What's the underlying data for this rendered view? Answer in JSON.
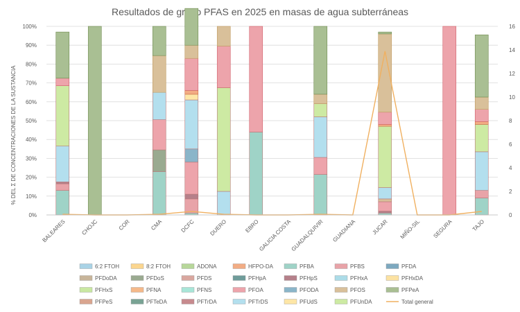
{
  "chart_data": {
    "type": "bar",
    "stacked": true,
    "title": "Resultados de grupo PFAS en 2025 en masas de agua subterráneas",
    "ylabel": "% DEL Σ DE CONCENTRACIONES DE LA SUSTANCIA",
    "y_ticks": [
      "0%",
      "10%",
      "20%",
      "30%",
      "40%",
      "50%",
      "60%",
      "70%",
      "80%",
      "90%",
      "100%"
    ],
    "y2_ticks": [
      "0",
      "2",
      "4",
      "6",
      "8",
      "10",
      "12",
      "14",
      "16"
    ],
    "ylim": [
      0,
      100
    ],
    "y2lim": [
      0,
      16
    ],
    "grid": true,
    "legend_position": "bottom",
    "categories": [
      "BALEARES",
      "CHOJC",
      "COR",
      "CMA",
      "DCFC",
      "DUERO",
      "EBRO",
      "GALICIA COSTA",
      "GUADALQUIVIR",
      "GUADIANA",
      "JUCAR",
      "MIÑO-SIL",
      "SEGURA",
      "TAJO"
    ],
    "series": [
      {
        "name": "6:2 FTOH",
        "color": "#a9d3e6",
        "values": [
          0,
          0,
          0,
          0,
          0,
          0,
          0,
          0,
          0,
          0,
          0,
          0,
          0,
          0
        ]
      },
      {
        "name": "8:2 FTOH",
        "color": "#fbd68f",
        "values": [
          0,
          0,
          0,
          0,
          0,
          0,
          0,
          0,
          0,
          0,
          0,
          0,
          0,
          0
        ]
      },
      {
        "name": "ADONA",
        "color": "#b7d79a",
        "values": [
          0,
          0,
          0,
          0,
          0,
          0,
          0,
          0,
          0,
          0,
          0,
          0,
          0,
          0
        ]
      },
      {
        "name": "HFPO-DA",
        "color": "#f2ac84",
        "values": [
          0,
          0,
          0,
          0,
          0,
          0,
          0,
          0,
          0,
          0,
          0,
          0,
          0,
          0
        ]
      },
      {
        "name": "PFBA",
        "color": "#9fd3c7",
        "values": [
          13,
          0,
          0,
          23,
          1,
          0,
          44,
          0,
          21.5,
          0,
          1,
          0,
          0,
          9
        ]
      },
      {
        "name": "PFBS",
        "color": "#e8a3a8",
        "values": [
          3.5,
          0,
          0,
          0,
          7.5,
          0,
          0,
          0,
          0,
          0,
          0,
          0,
          0,
          4
        ]
      },
      {
        "name": "PFDA",
        "color": "#7da8bf",
        "values": [
          0,
          0,
          0,
          0,
          0,
          0,
          0,
          0,
          0,
          0,
          0,
          0,
          0,
          0
        ]
      },
      {
        "name": "PFDoDA",
        "color": "#c8b59a",
        "values": [
          0,
          0,
          0,
          0,
          0,
          0,
          0,
          0,
          0,
          0,
          0,
          0,
          0,
          0
        ]
      },
      {
        "name": "PFDoS",
        "color": "#9aaa90",
        "values": [
          0,
          0,
          0,
          11.5,
          0,
          0,
          0,
          0,
          0,
          0,
          0,
          0,
          0,
          0
        ]
      },
      {
        "name": "PFDS",
        "color": "#d9a79f",
        "values": [
          0,
          0,
          0,
          0,
          0,
          0,
          0,
          0,
          0,
          0,
          0,
          0,
          0,
          0
        ]
      },
      {
        "name": "PFHpA",
        "color": "#6f9c9a",
        "values": [
          0,
          0,
          0,
          0,
          0,
          0,
          0,
          0,
          0,
          0,
          0,
          0,
          0,
          0
        ]
      },
      {
        "name": "PFHpS",
        "color": "#b5808a",
        "values": [
          1,
          0,
          0,
          0,
          2.5,
          0,
          0,
          0,
          0,
          0,
          1,
          0,
          0,
          0
        ]
      },
      {
        "name": "PFHxA",
        "color": "#acdce8",
        "values": [
          0,
          0,
          0,
          0,
          0,
          0,
          0,
          0,
          0,
          0,
          0,
          0,
          0,
          0
        ]
      },
      {
        "name": "PFHxDA",
        "color": "#fce2a2",
        "values": [
          0,
          0,
          0,
          0,
          0,
          0,
          0,
          0,
          0,
          0,
          0,
          0,
          0,
          0
        ]
      },
      {
        "name": "PFHxS",
        "color": "#c9e8a2",
        "values": [
          0,
          0,
          0,
          0,
          0,
          0,
          0,
          0,
          0,
          0,
          0,
          0,
          0,
          0
        ]
      },
      {
        "name": "PFNA",
        "color": "#f5b98a",
        "values": [
          0,
          0,
          0,
          0,
          0,
          0,
          0,
          0,
          0,
          0,
          0,
          0,
          0,
          0
        ]
      },
      {
        "name": "PFNS",
        "color": "#a8e6d8",
        "values": [
          0,
          0,
          0,
          0,
          0,
          0,
          0,
          0,
          0,
          0,
          0,
          0,
          0,
          0
        ]
      },
      {
        "name": "PFOA",
        "color": "#eda4ab",
        "values": [
          0,
          0,
          0,
          16,
          17,
          0,
          0,
          0,
          9,
          0,
          5,
          0,
          0,
          0
        ]
      },
      {
        "name": "PFODA",
        "color": "#8ab5c9",
        "values": [
          0,
          0,
          0,
          0,
          7,
          0,
          0,
          0,
          0,
          0,
          0,
          0,
          0,
          0
        ]
      },
      {
        "name": "PFOS",
        "color": "#d9c09a",
        "values": [
          0,
          0,
          0,
          0,
          0,
          0,
          0,
          0,
          0,
          0,
          1.5,
          0,
          0,
          0
        ]
      },
      {
        "name": "PFPeA",
        "color": "#a9bf93",
        "values": [
          0,
          0,
          0,
          0,
          0,
          0,
          0,
          0,
          0,
          0,
          0,
          0,
          0,
          0
        ]
      },
      {
        "name": "PFPeS",
        "color": "#d9a58f",
        "values": [
          0,
          0,
          0,
          0,
          0,
          0,
          0,
          0,
          0,
          0,
          0,
          0,
          0,
          0
        ]
      },
      {
        "name": "PFTeDA",
        "color": "#79a394",
        "values": [
          0,
          0,
          0,
          0,
          0,
          0,
          0,
          0,
          0,
          0,
          0,
          0,
          0,
          0
        ]
      },
      {
        "name": "PFTrDA",
        "color": "#c78a8e",
        "values": [
          0,
          0,
          0,
          0,
          0,
          0,
          0,
          0,
          0,
          0,
          0,
          0,
          0,
          0
        ]
      },
      {
        "name": "PFTrDS",
        "color": "#b3dfee",
        "values": [
          19,
          0,
          0,
          14.5,
          26,
          12.5,
          0,
          0,
          21.5,
          0,
          6,
          0,
          0,
          20.5
        ]
      },
      {
        "name": "PFUdS",
        "color": "#fde6a6",
        "values": [
          0,
          0,
          0,
          0,
          3,
          0,
          0,
          0,
          0,
          0,
          0,
          0,
          0,
          0
        ]
      },
      {
        "name": "PFUnDA",
        "color": "#cdeaa3",
        "values": [
          32,
          0,
          0,
          0,
          0,
          55,
          0,
          0,
          7,
          0,
          32.5,
          0,
          0,
          14.5
        ]
      }
    ],
    "top_segments": [
      {
        "pink": 4,
        "tan": 0,
        "olive": 24.5,
        "orange": 0
      },
      {
        "pink": 0,
        "tan": 0,
        "olive": 100,
        "orange": 0
      },
      {
        "pink": 0,
        "tan": 0,
        "olive": 0,
        "orange": 0
      },
      {
        "pink": 0,
        "tan": 19.5,
        "olive": 15.5,
        "orange": 0
      },
      {
        "pink": 17,
        "tan": 7,
        "olive": 19.5,
        "orange": 2
      },
      {
        "pink": 22,
        "tan": 10.5,
        "olive": 0,
        "orange": 0
      },
      {
        "pink": 56,
        "tan": 0,
        "olive": 0,
        "orange": 0
      },
      {
        "pink": 0,
        "tan": 0,
        "olive": 0,
        "orange": 0
      },
      {
        "pink": 0,
        "tan": 5,
        "olive": 36,
        "orange": 0
      },
      {
        "pink": 0,
        "tan": 0,
        "olive": 0,
        "orange": 0
      },
      {
        "pink": 6.5,
        "tan": 41.5,
        "olive": 1,
        "orange": 1
      },
      {
        "pink": 0,
        "tan": 0,
        "olive": 0,
        "orange": 0
      },
      {
        "pink": 100,
        "tan": 0,
        "olive": 0,
        "orange": 0
      },
      {
        "pink": 6.5,
        "tan": 6.5,
        "olive": 33,
        "orange": 1.5
      }
    ],
    "line": {
      "name": "Total general",
      "color": "#f0b060",
      "axis": "secondary",
      "values": [
        0.05,
        0,
        0,
        0.05,
        0.3,
        0.05,
        0,
        0,
        0.05,
        0,
        13.9,
        0,
        0,
        0.3
      ]
    },
    "legend": [
      "6:2 FTOH",
      "8:2 FTOH",
      "ADONA",
      "HFPO-DA",
      "PFBA",
      "PFBS",
      "PFDA",
      "PFDoDA",
      "PFDoS",
      "PFDS",
      "PFHpA",
      "PFHpS",
      "PFHxA",
      "PFHxDA",
      "PFHxS",
      "PFNA",
      "PFNS",
      "PFOA",
      "PFODA",
      "PFOS",
      "PFPeA",
      "PFPeS",
      "PFTeDA",
      "PFTrDA",
      "PFTrDS",
      "PFUdS",
      "PFUnDA",
      "Total general"
    ]
  }
}
